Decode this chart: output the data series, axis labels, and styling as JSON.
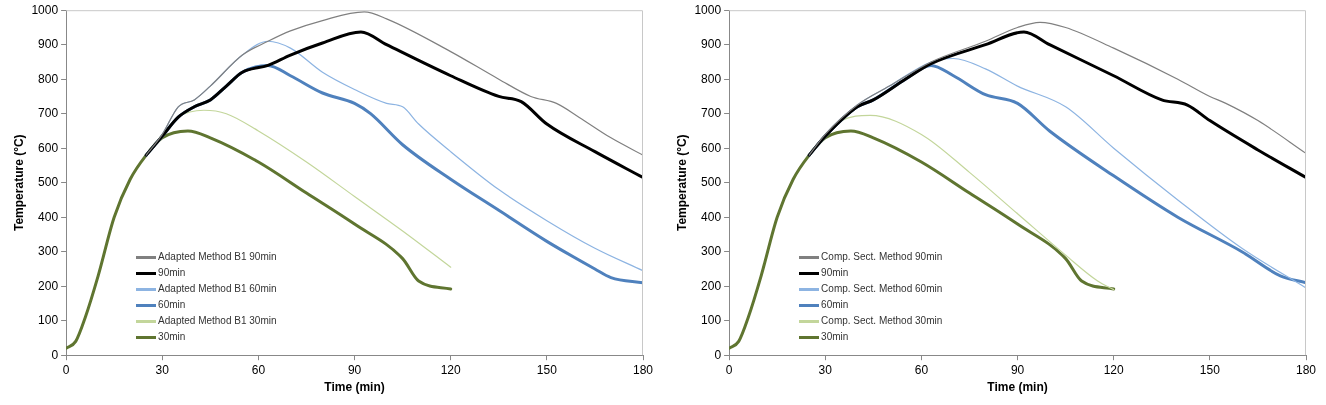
{
  "chart_data": [
    {
      "type": "line",
      "xlabel": "Time (min)",
      "ylabel": "Temperature (°C)",
      "xlim": [
        0,
        180
      ],
      "xticks": [
        0,
        30,
        60,
        90,
        120,
        150,
        180
      ],
      "ylim": [
        0,
        1000
      ],
      "yticks": [
        0,
        100,
        200,
        300,
        400,
        500,
        600,
        700,
        800,
        900,
        1000
      ],
      "grid": false,
      "legend": "bottom left",
      "marker": "none",
      "line_style": "solid",
      "series": [
        {
          "name": "Adapted Method B1 90min",
          "color": "#808080",
          "x": [
            25,
            30,
            35,
            40,
            45,
            55,
            63,
            70,
            80,
            93,
            100,
            120,
            135,
            145,
            153,
            160,
            170,
            180
          ],
          "values": [
            580,
            640,
            720,
            740,
            780,
            870,
            910,
            940,
            970,
            995,
            975,
            880,
            800,
            750,
            730,
            690,
            630,
            580
          ]
        },
        {
          "name": "90min",
          "color": "#000000",
          "x": [
            25,
            30,
            35,
            40,
            45,
            50,
            55,
            63,
            70,
            80,
            92,
            100,
            120,
            135,
            142,
            150,
            165,
            180
          ],
          "values": [
            580,
            635,
            690,
            720,
            740,
            780,
            820,
            840,
            870,
            905,
            937,
            900,
            810,
            750,
            735,
            670,
            590,
            515
          ]
        },
        {
          "name": "Adapted Method B1 60min",
          "color": "#8db4e2",
          "x": [
            25,
            30,
            35,
            40,
            45,
            55,
            63,
            70,
            80,
            90,
            100,
            105,
            110,
            120,
            135,
            150,
            165,
            180
          ],
          "values": [
            580,
            640,
            720,
            740,
            780,
            870,
            910,
            890,
            820,
            770,
            730,
            720,
            670,
            590,
            480,
            390,
            310,
            245
          ]
        },
        {
          "name": "60min",
          "color": "#4f81bd",
          "x": [
            25,
            30,
            35,
            40,
            45,
            50,
            55,
            63,
            70,
            80,
            90,
            95,
            105,
            120,
            135,
            150,
            165,
            170,
            180
          ],
          "values": [
            580,
            635,
            690,
            720,
            740,
            780,
            820,
            840,
            810,
            760,
            730,
            700,
            610,
            510,
            420,
            330,
            250,
            225,
            210
          ]
        },
        {
          "name": "Adapted Method B1 30min",
          "color": "#c3d69b",
          "x": [
            25,
            30,
            35,
            43,
            50,
            60,
            75,
            90,
            105,
            120
          ],
          "values": [
            580,
            640,
            690,
            710,
            700,
            650,
            560,
            460,
            360,
            255
          ]
        },
        {
          "name": "30min",
          "color": "#5f7530",
          "x": [
            0,
            3,
            6,
            10,
            15,
            20,
            25,
            30,
            38,
            45,
            60,
            75,
            90,
            105,
            110,
            120
          ],
          "values": [
            20,
            40,
            110,
            230,
            400,
            510,
            580,
            630,
            650,
            630,
            560,
            470,
            380,
            280,
            215,
            192
          ]
        }
      ]
    },
    {
      "type": "line",
      "xlabel": "Time (min)",
      "ylabel": "Temperature (°C)",
      "xlim": [
        0,
        180
      ],
      "xticks": [
        0,
        30,
        60,
        90,
        120,
        150,
        180
      ],
      "ylim": [
        0,
        1000
      ],
      "yticks": [
        0,
        100,
        200,
        300,
        400,
        500,
        600,
        700,
        800,
        900,
        1000
      ],
      "grid": false,
      "legend": "bottom left",
      "marker": "none",
      "line_style": "solid",
      "series": [
        {
          "name": "Comp. Sect. Method 90min",
          "color": "#808080",
          "x": [
            25,
            30,
            40,
            50,
            63,
            80,
            90,
            97,
            105,
            120,
            140,
            150,
            155,
            165,
            180
          ],
          "values": [
            580,
            640,
            725,
            780,
            850,
            910,
            950,
            965,
            950,
            890,
            800,
            750,
            730,
            680,
            585
          ]
        },
        {
          "name": "90min",
          "color": "#000000",
          "x": [
            25,
            30,
            40,
            45,
            55,
            63,
            80,
            92,
            100,
            120,
            135,
            143,
            150,
            165,
            180
          ],
          "values": [
            580,
            635,
            720,
            740,
            800,
            845,
            900,
            937,
            900,
            810,
            740,
            725,
            680,
            595,
            515
          ]
        },
        {
          "name": "Comp. Sect. Method 60min",
          "color": "#8db4e2",
          "x": [
            25,
            30,
            40,
            50,
            63,
            70,
            80,
            90,
            105,
            120,
            140,
            160,
            180
          ],
          "values": [
            580,
            640,
            725,
            780,
            850,
            860,
            830,
            780,
            720,
            600,
            450,
            310,
            195
          ]
        },
        {
          "name": "60min",
          "color": "#4f81bd",
          "x": [
            25,
            30,
            40,
            45,
            55,
            63,
            70,
            80,
            90,
            100,
            120,
            140,
            160,
            172,
            180
          ],
          "values": [
            580,
            635,
            720,
            740,
            800,
            840,
            810,
            755,
            730,
            650,
            520,
            400,
            300,
            230,
            210
          ]
        },
        {
          "name": "Comp. Sect. Method 30min",
          "color": "#c3d69b",
          "x": [
            25,
            30,
            35,
            44,
            60,
            75,
            90,
            105,
            115,
            120
          ],
          "values": [
            580,
            640,
            680,
            695,
            640,
            530,
            410,
            290,
            215,
            190
          ]
        },
        {
          "name": "30min",
          "color": "#5f7530",
          "x": [
            0,
            3,
            6,
            10,
            15,
            20,
            25,
            30,
            38,
            45,
            60,
            75,
            90,
            105,
            110,
            120
          ],
          "values": [
            20,
            40,
            110,
            230,
            400,
            510,
            580,
            630,
            650,
            630,
            560,
            470,
            380,
            280,
            215,
            192
          ]
        }
      ]
    }
  ]
}
